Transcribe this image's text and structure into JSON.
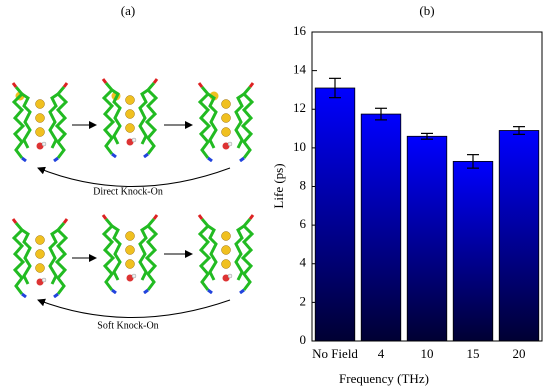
{
  "panel_a": {
    "label": "(a)",
    "captions": [
      "Direct Knock-On",
      "Soft Knock-On"
    ]
  },
  "chart_data": {
    "type": "bar",
    "title": "(b)",
    "categories": [
      "No Field",
      "4",
      "10",
      "15",
      "20"
    ],
    "values": [
      13.1,
      11.75,
      10.6,
      9.3,
      10.9
    ],
    "errors": [
      0.5,
      0.3,
      0.15,
      0.35,
      0.2
    ],
    "color": "#0000ff",
    "x_label": "Frequency (THz)",
    "y_label": "Life (ps)",
    "ylim": [
      0,
      16
    ],
    "yticks": [
      0,
      2,
      4,
      6,
      8,
      10,
      12,
      14,
      16
    ],
    "grid": false
  }
}
